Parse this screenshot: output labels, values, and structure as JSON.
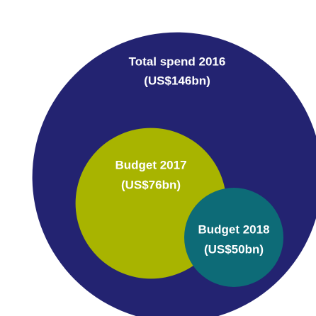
{
  "chart_data": {
    "type": "nested-circles",
    "categories": [
      "Total spend 2016",
      "Budget 2017",
      "Budget 2018"
    ],
    "values": [
      146,
      76,
      50
    ],
    "value_labels": [
      "(US$146bn)",
      "(US$76bn)",
      "(US$50bn)"
    ],
    "colors": [
      "#232371",
      "#a8b400",
      "#0d6b77"
    ]
  }
}
